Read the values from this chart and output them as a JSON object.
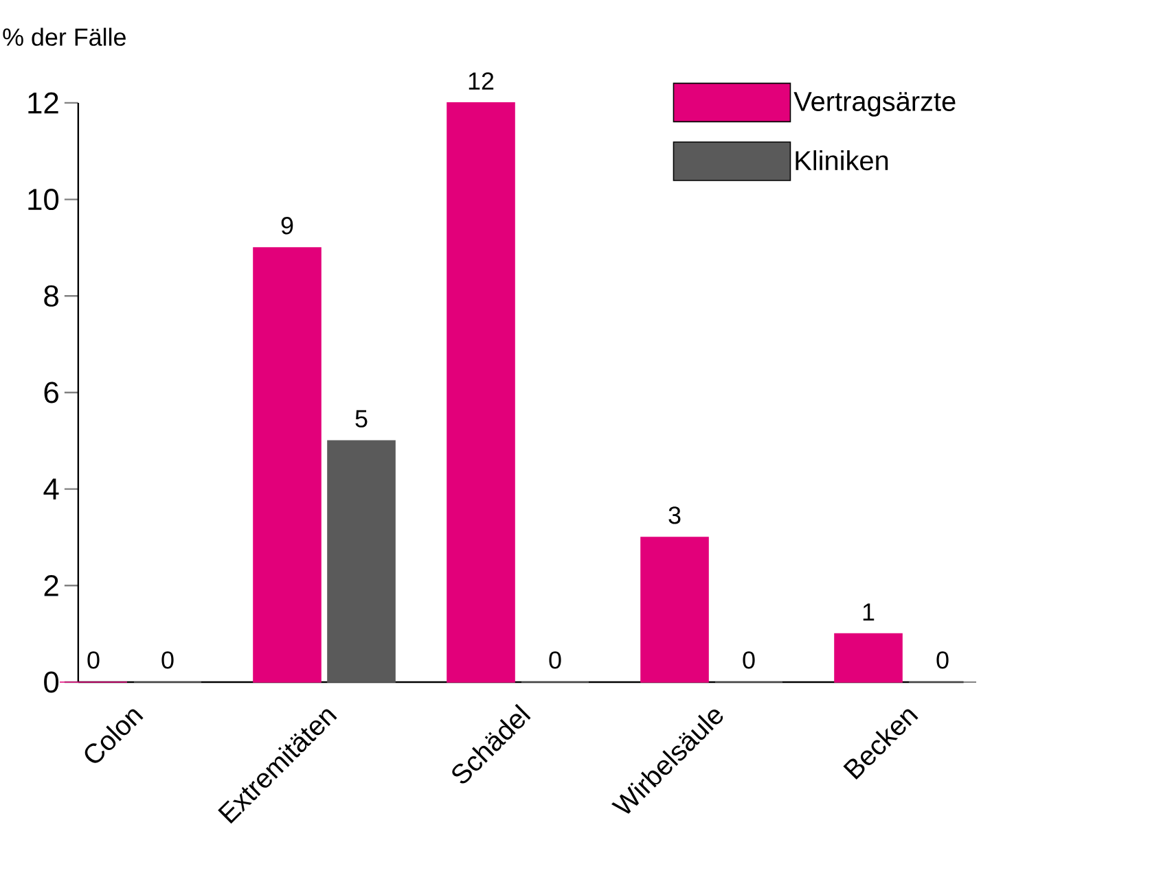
{
  "chart_data": {
    "type": "bar",
    "ylabel": "% der Fälle",
    "categories": [
      "Colon",
      "Extremitäten",
      "Schädel",
      "Wirbelsäule",
      "Becken"
    ],
    "series": [
      {
        "name": "Vertragsärzte",
        "color": "#e2007a",
        "values": [
          0,
          9,
          12,
          3,
          1
        ]
      },
      {
        "name": "Kliniken",
        "color": "#5a5a5a",
        "values": [
          0,
          5,
          0,
          0,
          0
        ]
      }
    ],
    "ylim": [
      0,
      12
    ],
    "yticks": [
      0,
      2,
      4,
      6,
      8,
      10,
      12
    ],
    "data_labels": true,
    "legend": "top right"
  }
}
